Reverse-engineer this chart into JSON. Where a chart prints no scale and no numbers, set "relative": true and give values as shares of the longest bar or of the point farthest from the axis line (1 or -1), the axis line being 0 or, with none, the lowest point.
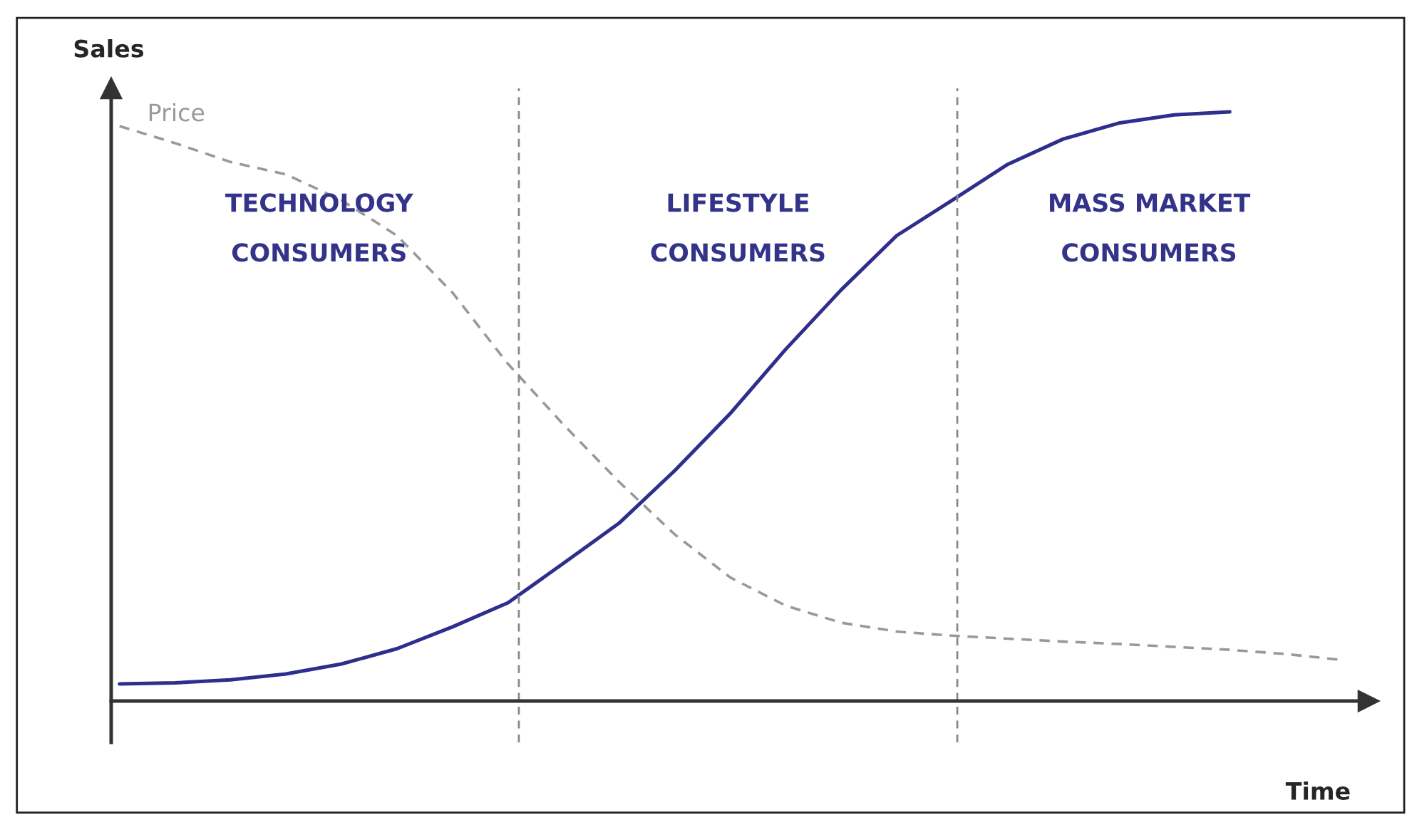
{
  "chart_data": {
    "type": "line",
    "relative": true,
    "xlabel": "Time",
    "ylabel": "Sales",
    "categories": [
      null,
      null,
      null,
      null,
      null,
      null,
      null,
      null,
      null,
      null,
      null,
      null,
      null,
      null,
      null,
      null,
      null,
      null,
      null,
      null,
      null,
      null,
      null
    ],
    "series": [
      {
        "color": "#2e2e8c",
        "line_style": "solid",
        "values": [
          0.029,
          0.031,
          0.036,
          0.046,
          0.063,
          0.089,
          0.126,
          0.167,
          0.234,
          0.302,
          0.391,
          0.488,
          0.597,
          0.698,
          0.79,
          0.85,
          0.911,
          0.954,
          0.981,
          0.995,
          1.0,
          null,
          null
        ]
      },
      {
        "name": "Price",
        "color": "#999999",
        "line_style": "dashed",
        "values": [
          0.976,
          0.947,
          0.915,
          0.894,
          0.85,
          0.79,
          0.693,
          0.572,
          0.469,
          0.372,
          0.283,
          0.21,
          0.162,
          0.133,
          0.118,
          0.111,
          0.106,
          0.101,
          0.097,
          0.092,
          0.087,
          0.08,
          0.07
        ]
      }
    ],
    "annotations": [
      "TECHNOLOGY\n\nCONSUMERS",
      "LIFESTYLE\n\nCONSUMERS",
      "MASS MARKET\n\nCONSUMERS"
    ],
    "marker": "none",
    "legend": false
  }
}
